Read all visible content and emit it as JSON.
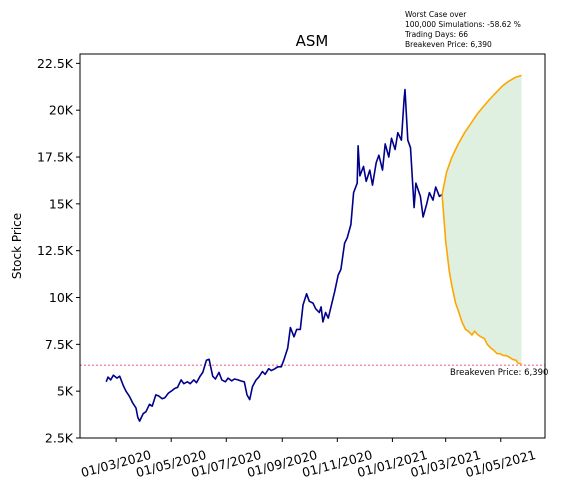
{
  "chart_data": {
    "type": "line",
    "title": "ASM",
    "ylabel": "Stock Price",
    "xlabel": "",
    "ylim": [
      2500,
      23000
    ],
    "y_ticks": [
      {
        "value": 2500,
        "label": "2.5K"
      },
      {
        "value": 5000,
        "label": "5K"
      },
      {
        "value": 7500,
        "label": "7.5K"
      },
      {
        "value": 10000,
        "label": "10K"
      },
      {
        "value": 12500,
        "label": "12.5K"
      },
      {
        "value": 15000,
        "label": "15K"
      },
      {
        "value": 17500,
        "label": "17.5K"
      },
      {
        "value": 20000,
        "label": "20K"
      },
      {
        "value": 22500,
        "label": "22.5K"
      }
    ],
    "xlim": [
      "2020-01-21",
      "2021-06-19"
    ],
    "x_ticks": [
      {
        "date": "2020-03-01",
        "label": "01/03/2020"
      },
      {
        "date": "2020-05-01",
        "label": "01/05/2020"
      },
      {
        "date": "2020-07-01",
        "label": "01/07/2020"
      },
      {
        "date": "2020-09-01",
        "label": "01/09/2020"
      },
      {
        "date": "2020-11-01",
        "label": "01/11/2020"
      },
      {
        "date": "2021-01-01",
        "label": "01/01/2021"
      },
      {
        "date": "2021-03-01",
        "label": "01/03/2021"
      },
      {
        "date": "2021-05-01",
        "label": "01/05/2021"
      }
    ],
    "annotation": {
      "lines": [
        "Worst Case over",
        "100,000 Simulations: -58.62 %",
        "Trading Days: 66",
        "Breakeven Price: 6,390"
      ]
    },
    "breakeven": {
      "value": 6390,
      "label": "Breakeven Price: 6,390",
      "color": "#e0245e"
    },
    "colors": {
      "history": "#00008b",
      "projection": "#ffa500",
      "band_fill": "#d8ecd8"
    },
    "series": [
      {
        "role": "history",
        "points": [
          [
            "2020-02-19",
            5500
          ],
          [
            "2020-02-21",
            5750
          ],
          [
            "2020-02-24",
            5600
          ],
          [
            "2020-02-27",
            5850
          ],
          [
            "2020-03-02",
            5700
          ],
          [
            "2020-03-05",
            5800
          ],
          [
            "2020-03-09",
            5300
          ],
          [
            "2020-03-12",
            5000
          ],
          [
            "2020-03-16",
            4700
          ],
          [
            "2020-03-19",
            4400
          ],
          [
            "2020-03-23",
            4100
          ],
          [
            "2020-03-25",
            3600
          ],
          [
            "2020-03-27",
            3400
          ],
          [
            "2020-03-31",
            3800
          ],
          [
            "2020-04-03",
            3900
          ],
          [
            "2020-04-07",
            4300
          ],
          [
            "2020-04-10",
            4200
          ],
          [
            "2020-04-14",
            4800
          ],
          [
            "2020-04-17",
            4750
          ],
          [
            "2020-04-21",
            4600
          ],
          [
            "2020-04-24",
            4650
          ],
          [
            "2020-04-28",
            4900
          ],
          [
            "2020-05-01",
            5000
          ],
          [
            "2020-05-05",
            5150
          ],
          [
            "2020-05-08",
            5200
          ],
          [
            "2020-05-12",
            5600
          ],
          [
            "2020-05-15",
            5400
          ],
          [
            "2020-05-19",
            5500
          ],
          [
            "2020-05-22",
            5400
          ],
          [
            "2020-05-26",
            5600
          ],
          [
            "2020-05-29",
            5450
          ],
          [
            "2020-06-02",
            5800
          ],
          [
            "2020-06-05",
            6000
          ],
          [
            "2020-06-09",
            6650
          ],
          [
            "2020-06-12",
            6700
          ],
          [
            "2020-06-16",
            5800
          ],
          [
            "2020-06-19",
            5650
          ],
          [
            "2020-06-23",
            6000
          ],
          [
            "2020-06-26",
            5600
          ],
          [
            "2020-06-30",
            5500
          ],
          [
            "2020-07-03",
            5700
          ],
          [
            "2020-07-07",
            5550
          ],
          [
            "2020-07-10",
            5650
          ],
          [
            "2020-07-14",
            5600
          ],
          [
            "2020-07-17",
            5550
          ],
          [
            "2020-07-21",
            5500
          ],
          [
            "2020-07-24",
            4800
          ],
          [
            "2020-07-27",
            4550
          ],
          [
            "2020-07-30",
            5250
          ],
          [
            "2020-08-03",
            5600
          ],
          [
            "2020-08-06",
            5750
          ],
          [
            "2020-08-10",
            6050
          ],
          [
            "2020-08-13",
            5900
          ],
          [
            "2020-08-17",
            6200
          ],
          [
            "2020-08-20",
            6100
          ],
          [
            "2020-08-24",
            6200
          ],
          [
            "2020-08-27",
            6300
          ],
          [
            "2020-08-31",
            6300
          ],
          [
            "2020-09-03",
            6700
          ],
          [
            "2020-09-07",
            7300
          ],
          [
            "2020-09-10",
            8400
          ],
          [
            "2020-09-14",
            7900
          ],
          [
            "2020-09-17",
            8300
          ],
          [
            "2020-09-21",
            8300
          ],
          [
            "2020-09-24",
            9600
          ],
          [
            "2020-09-28",
            10200
          ],
          [
            "2020-10-01",
            9800
          ],
          [
            "2020-10-05",
            9700
          ],
          [
            "2020-10-08",
            9400
          ],
          [
            "2020-10-12",
            9200
          ],
          [
            "2020-10-14",
            9500
          ],
          [
            "2020-10-16",
            8700
          ],
          [
            "2020-10-19",
            9200
          ],
          [
            "2020-10-22",
            8900
          ],
          [
            "2020-10-26",
            9700
          ],
          [
            "2020-10-29",
            10300
          ],
          [
            "2020-11-02",
            11200
          ],
          [
            "2020-11-05",
            11500
          ],
          [
            "2020-11-09",
            12900
          ],
          [
            "2020-11-12",
            13200
          ],
          [
            "2020-11-16",
            13900
          ],
          [
            "2020-11-19",
            15600
          ],
          [
            "2020-11-23",
            16100
          ],
          [
            "2020-11-24",
            18100
          ],
          [
            "2020-11-26",
            16500
          ],
          [
            "2020-11-30",
            17000
          ],
          [
            "2020-12-03",
            16200
          ],
          [
            "2020-12-07",
            16800
          ],
          [
            "2020-12-10",
            16000
          ],
          [
            "2020-12-14",
            17200
          ],
          [
            "2020-12-17",
            17600
          ],
          [
            "2020-12-21",
            16800
          ],
          [
            "2020-12-24",
            18200
          ],
          [
            "2020-12-28",
            17500
          ],
          [
            "2020-12-31",
            18500
          ],
          [
            "2021-01-04",
            17900
          ],
          [
            "2021-01-07",
            18800
          ],
          [
            "2021-01-11",
            18400
          ],
          [
            "2021-01-14",
            20600
          ],
          [
            "2021-01-15",
            21100
          ],
          [
            "2021-01-18",
            18400
          ],
          [
            "2021-01-21",
            18000
          ],
          [
            "2021-01-25",
            14800
          ],
          [
            "2021-01-27",
            16100
          ],
          [
            "2021-02-01",
            15400
          ],
          [
            "2021-02-04",
            14300
          ],
          [
            "2021-02-08",
            15000
          ],
          [
            "2021-02-11",
            15600
          ],
          [
            "2021-02-15",
            15200
          ],
          [
            "2021-02-18",
            15900
          ],
          [
            "2021-02-22",
            15400
          ],
          [
            "2021-02-25",
            15500
          ]
        ]
      },
      {
        "role": "projection-upper",
        "points": [
          [
            "2021-02-25",
            15500
          ],
          [
            "2021-03-02",
            16700
          ],
          [
            "2021-03-08",
            17500
          ],
          [
            "2021-03-15",
            18200
          ],
          [
            "2021-03-22",
            18800
          ],
          [
            "2021-03-29",
            19300
          ],
          [
            "2021-04-05",
            19800
          ],
          [
            "2021-04-12",
            20200
          ],
          [
            "2021-04-19",
            20600
          ],
          [
            "2021-04-26",
            20950
          ],
          [
            "2021-05-03",
            21300
          ],
          [
            "2021-05-10",
            21550
          ],
          [
            "2021-05-17",
            21750
          ],
          [
            "2021-05-24",
            21850
          ]
        ]
      },
      {
        "role": "projection-lower",
        "points": [
          [
            "2021-02-25",
            15500
          ],
          [
            "2021-03-01",
            13000
          ],
          [
            "2021-03-05",
            11400
          ],
          [
            "2021-03-08",
            10600
          ],
          [
            "2021-03-12",
            9700
          ],
          [
            "2021-03-15",
            9300
          ],
          [
            "2021-03-19",
            8700
          ],
          [
            "2021-03-23",
            8300
          ],
          [
            "2021-03-26",
            8200
          ],
          [
            "2021-03-30",
            8000
          ],
          [
            "2021-04-02",
            8200
          ],
          [
            "2021-04-06",
            8000
          ],
          [
            "2021-04-09",
            7900
          ],
          [
            "2021-04-13",
            7800
          ],
          [
            "2021-04-16",
            7500
          ],
          [
            "2021-04-20",
            7300
          ],
          [
            "2021-04-23",
            7200
          ],
          [
            "2021-04-27",
            7000
          ],
          [
            "2021-04-30",
            7000
          ],
          [
            "2021-05-04",
            6900
          ],
          [
            "2021-05-07",
            6900
          ],
          [
            "2021-05-11",
            6800
          ],
          [
            "2021-05-14",
            6700
          ],
          [
            "2021-05-18",
            6650
          ],
          [
            "2021-05-20",
            6500
          ],
          [
            "2021-05-24",
            6450
          ]
        ]
      }
    ]
  }
}
